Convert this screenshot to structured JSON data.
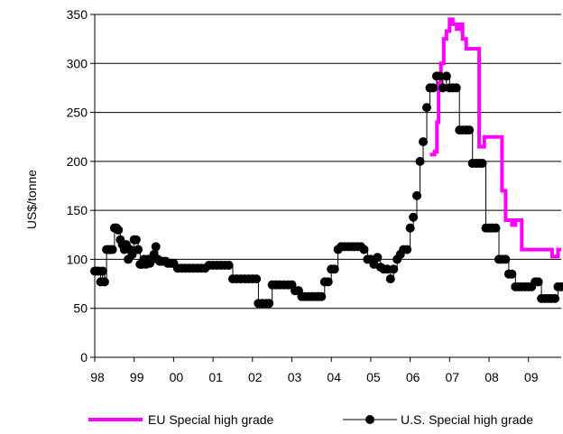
{
  "chart_data": {
    "type": "line",
    "title": "",
    "xlabel": "",
    "ylabel": "US$/tonne",
    "ylim": [
      0,
      350
    ],
    "yticks": [
      0,
      50,
      100,
      150,
      200,
      250,
      300,
      350
    ],
    "xlim": [
      1998.0,
      2009.83
    ],
    "xticks": [
      {
        "x": 1998,
        "label": "98"
      },
      {
        "x": 1999,
        "label": "99"
      },
      {
        "x": 2000,
        "label": "00"
      },
      {
        "x": 2001,
        "label": "01"
      },
      {
        "x": 2002,
        "label": "02"
      },
      {
        "x": 2003,
        "label": "03"
      },
      {
        "x": 2004,
        "label": "04"
      },
      {
        "x": 2005,
        "label": "05"
      },
      {
        "x": 2006,
        "label": "06"
      },
      {
        "x": 2007,
        "label": "07"
      },
      {
        "x": 2008,
        "label": "08"
      },
      {
        "x": 2009,
        "label": "09"
      }
    ],
    "grid": "horizontal",
    "legend_position": "bottom",
    "series": [
      {
        "name": "EU Special high grade",
        "color": "#ff00ff",
        "style": "line",
        "points": [
          [
            2006.5,
            207
          ],
          [
            2006.62,
            210
          ],
          [
            2006.68,
            240
          ],
          [
            2006.72,
            280
          ],
          [
            2006.78,
            300
          ],
          [
            2006.85,
            325
          ],
          [
            2006.92,
            333
          ],
          [
            2007.0,
            345
          ],
          [
            2007.08,
            340
          ],
          [
            2007.18,
            335
          ],
          [
            2007.25,
            340
          ],
          [
            2007.33,
            325
          ],
          [
            2007.42,
            315
          ],
          [
            2007.5,
            315
          ],
          [
            2007.58,
            315
          ],
          [
            2007.67,
            315
          ],
          [
            2007.75,
            215
          ],
          [
            2007.88,
            225
          ],
          [
            2008.0,
            225
          ],
          [
            2008.12,
            225
          ],
          [
            2008.25,
            225
          ],
          [
            2008.33,
            170
          ],
          [
            2008.42,
            140
          ],
          [
            2008.5,
            140
          ],
          [
            2008.58,
            135
          ],
          [
            2008.67,
            140
          ],
          [
            2008.75,
            140
          ],
          [
            2008.83,
            110
          ],
          [
            2009.0,
            110
          ],
          [
            2009.25,
            110
          ],
          [
            2009.5,
            110
          ],
          [
            2009.6,
            103
          ],
          [
            2009.7,
            103
          ],
          [
            2009.75,
            110
          ],
          [
            2009.83,
            110
          ]
        ]
      },
      {
        "name": "U.S. Special high grade",
        "color": "#000000",
        "style": "line-markers",
        "points": [
          [
            1998.0,
            88
          ],
          [
            1998.05,
            88
          ],
          [
            1998.1,
            88
          ],
          [
            1998.15,
            77
          ],
          [
            1998.2,
            88
          ],
          [
            1998.25,
            77
          ],
          [
            1998.3,
            110
          ],
          [
            1998.35,
            110
          ],
          [
            1998.4,
            110
          ],
          [
            1998.45,
            110
          ],
          [
            1998.5,
            132
          ],
          [
            1998.55,
            132
          ],
          [
            1998.6,
            130
          ],
          [
            1998.65,
            120
          ],
          [
            1998.7,
            115
          ],
          [
            1998.75,
            110
          ],
          [
            1998.8,
            115
          ],
          [
            1998.85,
            100
          ],
          [
            1998.9,
            110
          ],
          [
            1998.95,
            105
          ],
          [
            1999.0,
            120
          ],
          [
            1999.05,
            120
          ],
          [
            1999.1,
            110
          ],
          [
            1999.15,
            95
          ],
          [
            1999.2,
            95
          ],
          [
            1999.25,
            100
          ],
          [
            1999.3,
            95
          ],
          [
            1999.35,
            100
          ],
          [
            1999.4,
            96
          ],
          [
            1999.45,
            100
          ],
          [
            1999.5,
            105
          ],
          [
            1999.55,
            113
          ],
          [
            1999.6,
            100
          ],
          [
            1999.65,
            98
          ],
          [
            1999.7,
            98
          ],
          [
            1999.75,
            98
          ],
          [
            1999.8,
            98
          ],
          [
            1999.85,
            96
          ],
          [
            1999.9,
            96
          ],
          [
            1999.95,
            96
          ],
          [
            2000.0,
            96
          ],
          [
            2000.1,
            91
          ],
          [
            2000.2,
            91
          ],
          [
            2000.3,
            91
          ],
          [
            2000.4,
            91
          ],
          [
            2000.5,
            91
          ],
          [
            2000.6,
            91
          ],
          [
            2000.7,
            91
          ],
          [
            2000.8,
            91
          ],
          [
            2000.9,
            94
          ],
          [
            2001.0,
            94
          ],
          [
            2001.1,
            94
          ],
          [
            2001.2,
            94
          ],
          [
            2001.3,
            94
          ],
          [
            2001.4,
            94
          ],
          [
            2001.5,
            80
          ],
          [
            2001.6,
            80
          ],
          [
            2001.7,
            80
          ],
          [
            2001.8,
            80
          ],
          [
            2001.9,
            80
          ],
          [
            2002.0,
            80
          ],
          [
            2002.1,
            80
          ],
          [
            2002.15,
            55
          ],
          [
            2002.25,
            55
          ],
          [
            2002.35,
            55
          ],
          [
            2002.42,
            55
          ],
          [
            2002.5,
            74
          ],
          [
            2002.6,
            74
          ],
          [
            2002.7,
            74
          ],
          [
            2002.8,
            74
          ],
          [
            2002.9,
            74
          ],
          [
            2003.0,
            74
          ],
          [
            2003.08,
            68
          ],
          [
            2003.17,
            68
          ],
          [
            2003.25,
            62
          ],
          [
            2003.33,
            62
          ],
          [
            2003.42,
            62
          ],
          [
            2003.5,
            62
          ],
          [
            2003.58,
            62
          ],
          [
            2003.67,
            62
          ],
          [
            2003.75,
            62
          ],
          [
            2003.83,
            77
          ],
          [
            2003.92,
            77
          ],
          [
            2004.0,
            90
          ],
          [
            2004.08,
            90
          ],
          [
            2004.17,
            110
          ],
          [
            2004.25,
            113
          ],
          [
            2004.33,
            113
          ],
          [
            2004.42,
            113
          ],
          [
            2004.5,
            113
          ],
          [
            2004.58,
            113
          ],
          [
            2004.67,
            113
          ],
          [
            2004.75,
            113
          ],
          [
            2004.83,
            110
          ],
          [
            2004.92,
            100
          ],
          [
            2005.0,
            100
          ],
          [
            2005.08,
            95
          ],
          [
            2005.17,
            102
          ],
          [
            2005.25,
            92
          ],
          [
            2005.33,
            90
          ],
          [
            2005.42,
            90
          ],
          [
            2005.5,
            80
          ],
          [
            2005.58,
            90
          ],
          [
            2005.67,
            100
          ],
          [
            2005.75,
            105
          ],
          [
            2005.83,
            110
          ],
          [
            2005.92,
            110
          ],
          [
            2006.0,
            132
          ],
          [
            2006.08,
            143
          ],
          [
            2006.17,
            165
          ],
          [
            2006.25,
            200
          ],
          [
            2006.33,
            220
          ],
          [
            2006.42,
            255
          ],
          [
            2006.5,
            275
          ],
          [
            2006.58,
            275
          ],
          [
            2006.67,
            287
          ],
          [
            2006.75,
            287
          ],
          [
            2006.83,
            275
          ],
          [
            2006.92,
            287
          ],
          [
            2007.0,
            275
          ],
          [
            2007.08,
            275
          ],
          [
            2007.17,
            275
          ],
          [
            2007.25,
            232
          ],
          [
            2007.33,
            232
          ],
          [
            2007.42,
            232
          ],
          [
            2007.5,
            232
          ],
          [
            2007.58,
            198
          ],
          [
            2007.67,
            198
          ],
          [
            2007.75,
            198
          ],
          [
            2007.83,
            198
          ],
          [
            2007.92,
            132
          ],
          [
            2008.0,
            132
          ],
          [
            2008.08,
            132
          ],
          [
            2008.17,
            132
          ],
          [
            2008.25,
            100
          ],
          [
            2008.33,
            100
          ],
          [
            2008.42,
            100
          ],
          [
            2008.5,
            85
          ],
          [
            2008.58,
            85
          ],
          [
            2008.67,
            72
          ],
          [
            2008.75,
            72
          ],
          [
            2008.83,
            72
          ],
          [
            2008.92,
            72
          ],
          [
            2009.0,
            72
          ],
          [
            2009.08,
            72
          ],
          [
            2009.17,
            77
          ],
          [
            2009.25,
            77
          ],
          [
            2009.33,
            60
          ],
          [
            2009.42,
            60
          ],
          [
            2009.5,
            60
          ],
          [
            2009.58,
            60
          ],
          [
            2009.67,
            60
          ],
          [
            2009.75,
            72
          ],
          [
            2009.83,
            72
          ]
        ]
      }
    ]
  }
}
